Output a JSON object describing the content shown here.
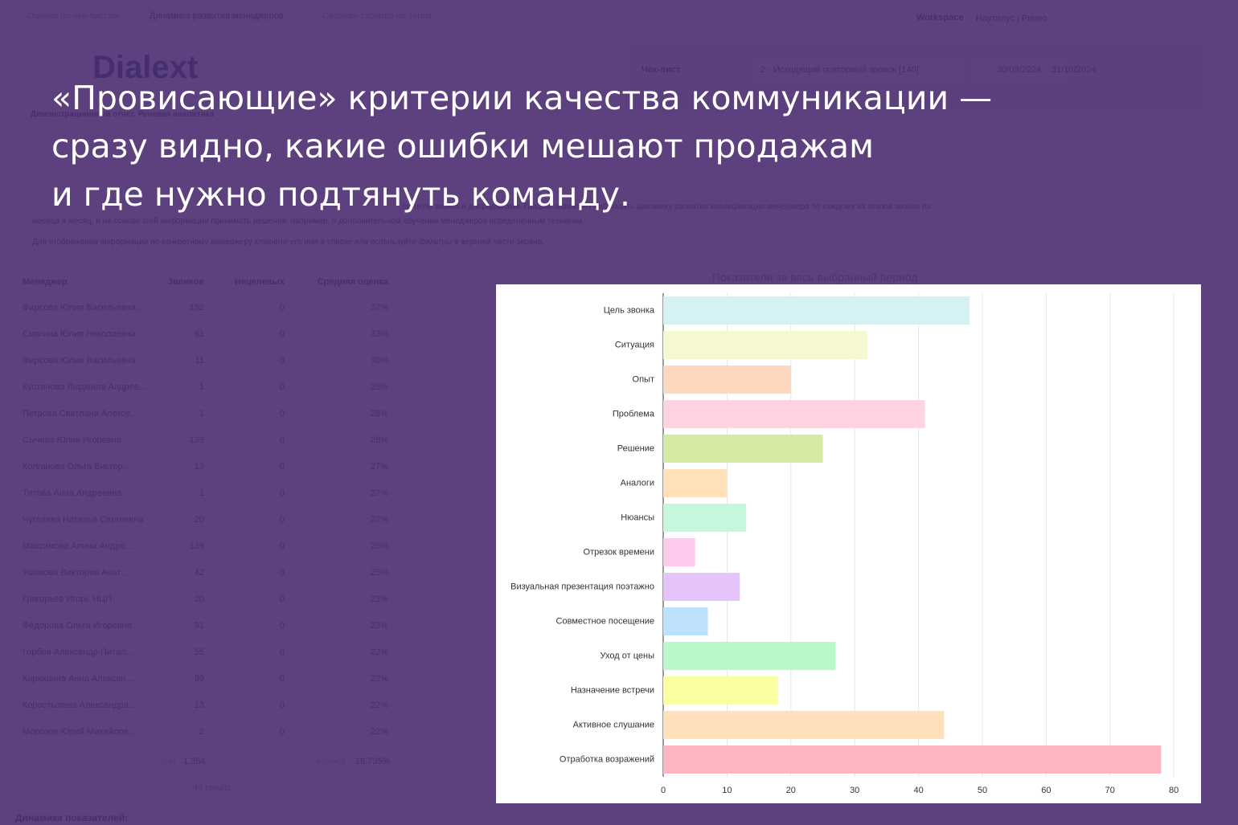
{
  "tabs": [
    "Оценка по чек-листам",
    "Динамика развития менеджеров",
    "Сводная таблица по тегам"
  ],
  "workspace": {
    "label": "Workspace",
    "value": "Наутилус | Ривео"
  },
  "logo": "Dialext",
  "subtitle": "Демонстрационный отчет. Речевая аналитика",
  "filters": {
    "checklist_label": "Чек-лист",
    "checklist_value": "2 - Исходящий повторный звонок [140]",
    "date_from": "30/09/2024",
    "date_to": "31/10/2024"
  },
  "description": [
    "ем цели звонка и допродажами. График позволяет наблюдать динамику развития квалификации менеджера по каждому из этапов звонка из",
    "месяца в месяц, и на основе этой информации принимать решения, например, о дополнительном обучении менеджеров определенным техникам.",
    "Для отображения информации по конкретному менеджеру кликните его имя в списке или используйте фильтры в верхней части экрана."
  ],
  "table": {
    "headers": [
      "Менеджер",
      "Звонков",
      "Нецелевых",
      "Средняя оценка"
    ],
    "rows": [
      [
        "Фирсова Юлия Васильевна...",
        "132",
        "0",
        "37%"
      ],
      [
        "Смагина Юлия Николаевна",
        "61",
        "0",
        "33%"
      ],
      [
        "Фирсова Юлия Васильевна",
        "11",
        "0",
        "30%"
      ],
      [
        "Кустинова Людмила Андрее...",
        "1",
        "0",
        "29%"
      ],
      [
        "Петрова Светлана Алексе...",
        "1",
        "0",
        "28%"
      ],
      [
        "Сычева Юлия Игоревна",
        "139",
        "0",
        "28%"
      ],
      [
        "Колганова Ольга Виктор...",
        "13",
        "0",
        "27%"
      ],
      [
        "Титова Анна Андреевна",
        "1",
        "0",
        "27%"
      ],
      [
        "Чуглаева Наталья Сергеевна",
        "20",
        "0",
        "27%"
      ],
      [
        "Максимова Алина Андре...",
        "139",
        "0",
        "25%"
      ],
      [
        "Ушакова Виктория Анат...",
        "42",
        "0",
        "25%"
      ],
      [
        "Григорьев Игорь НЦП",
        "20",
        "0",
        "23%"
      ],
      [
        "Фёдорова Ольга Игоревна",
        "91",
        "0",
        "23%"
      ],
      [
        "Горбов Александр Питал...",
        "55",
        "0",
        "22%"
      ],
      [
        "Кирюшина Анна Алексан...",
        "99",
        "0",
        "22%"
      ],
      [
        "Коростылева Александра...",
        "13",
        "0",
        "22%"
      ],
      [
        "Морозов Юрий Михайлов...",
        "2",
        "0",
        "22%"
      ]
    ],
    "sum_label": "SUM",
    "sum": "1,354",
    "avg_label": "AVERAGE",
    "avg": "18.735%",
    "results": "49 results"
  },
  "section_heading": "Динамика показателей:",
  "headline": [
    "«Провисающие» критерии качества коммуникации —",
    "сразу видно, какие ошибки мешают продажам",
    "и где нужно подтянуть команду."
  ],
  "chart_data": {
    "type": "hbar",
    "title": "Показатели за весь выбранный период",
    "categories": [
      "Цель звонка",
      "Ситуация",
      "Опыт",
      "Проблема",
      "Решение",
      "Аналоги",
      "Нюансы",
      "Отрезок времени",
      "Визуальная презентация поэтажно",
      "Совместное посещение",
      "Уход от цены",
      "Назначение встречи",
      "Активное слушание",
      "Отработка возражений"
    ],
    "values": [
      48,
      32,
      20,
      41,
      25,
      10,
      13,
      5,
      12,
      7,
      27,
      18,
      44,
      78
    ],
    "colors": [
      "#d4f1f4",
      "#f5f8d0",
      "#fdd8bf",
      "#ffd3df",
      "#d6eaa5",
      "#ffe0b8",
      "#c5f7dc",
      "#ffc9ec",
      "#e5c4fc",
      "#bde0fd",
      "#baf8c9",
      "#fcff9f",
      "#ffe0bb",
      "#ffb6c0"
    ],
    "xlim": [
      0,
      83
    ],
    "xticks": [
      0,
      10,
      20,
      30,
      40,
      50,
      60,
      70,
      80
    ],
    "grid": true
  }
}
